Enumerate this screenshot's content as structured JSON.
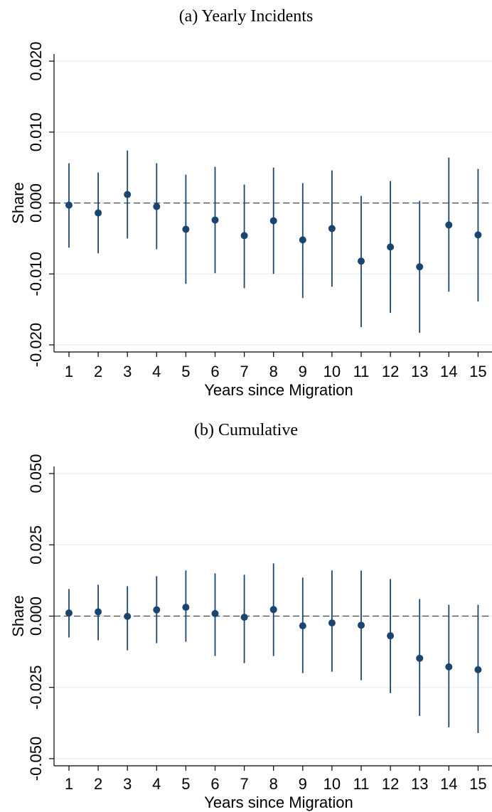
{
  "chart_data": [
    {
      "type": "scatter",
      "title": "(a) Yearly Incidents",
      "xlabel": "Years since Migration",
      "ylabel": "Share",
      "x": [
        1,
        2,
        3,
        4,
        5,
        6,
        7,
        8,
        9,
        10,
        11,
        12,
        13,
        14,
        15
      ],
      "x_tick_labels": [
        "1",
        "2",
        "3",
        "4",
        "5",
        "6",
        "7",
        "8",
        "9",
        "10",
        "11",
        "12",
        "13",
        "14",
        "15"
      ],
      "y_ticks": [
        -0.02,
        -0.01,
        0.0,
        0.01,
        0.02
      ],
      "y_tick_labels": [
        "-0.020",
        "-0.010",
        "0.000",
        "0.010",
        "0.020"
      ],
      "ylim": [
        -0.021,
        0.021
      ],
      "grid": true,
      "reference_line": 0,
      "series": [
        {
          "estimate": [
            -0.0003,
            -0.0014,
            0.0012,
            -0.0005,
            -0.0037,
            -0.0024,
            -0.0046,
            -0.0025,
            -0.0052,
            -0.0036,
            -0.0082,
            -0.0062,
            -0.009,
            -0.0031,
            -0.0045
          ],
          "ci_lower": [
            -0.0063,
            -0.0071,
            -0.005,
            -0.0065,
            -0.0114,
            -0.0099,
            -0.012,
            -0.01,
            -0.0134,
            -0.0118,
            -0.0175,
            -0.0155,
            -0.0183,
            -0.0125,
            -0.0139
          ],
          "ci_upper": [
            0.0056,
            0.0043,
            0.0074,
            0.0056,
            0.004,
            0.0051,
            0.0026,
            0.005,
            0.0028,
            0.0046,
            0.001,
            0.0031,
            0.0003,
            0.0064,
            0.0048
          ]
        }
      ]
    },
    {
      "type": "scatter",
      "title": "(b) Cumulative",
      "xlabel": "Years since Migration",
      "ylabel": "Share",
      "x": [
        1,
        2,
        3,
        4,
        5,
        6,
        7,
        8,
        9,
        10,
        11,
        12,
        13,
        14,
        15
      ],
      "x_tick_labels": [
        "1",
        "2",
        "3",
        "4",
        "5",
        "6",
        "7",
        "8",
        "9",
        "10",
        "11",
        "12",
        "13",
        "14",
        "15"
      ],
      "y_ticks": [
        -0.05,
        -0.025,
        0.0,
        0.025,
        0.05
      ],
      "y_tick_labels": [
        "-0.050",
        "-0.025",
        "0.000",
        "0.025",
        "0.050"
      ],
      "ylim": [
        -0.0525,
        0.0525
      ],
      "grid": true,
      "reference_line": 0,
      "series": [
        {
          "estimate": [
            0.0011,
            0.0015,
            -0.0001,
            0.0022,
            0.0031,
            0.0009,
            -0.0004,
            0.0023,
            -0.0034,
            -0.0024,
            -0.0032,
            -0.0069,
            -0.0148,
            -0.0178,
            -0.0188
          ],
          "ci_lower": [
            -0.0075,
            -0.0085,
            -0.012,
            -0.0095,
            -0.009,
            -0.014,
            -0.0165,
            -0.014,
            -0.02,
            -0.0195,
            -0.0225,
            -0.027,
            -0.035,
            -0.039,
            -0.041
          ],
          "ci_upper": [
            0.0095,
            0.011,
            0.0105,
            0.014,
            0.016,
            0.015,
            0.0145,
            0.0185,
            0.0135,
            0.016,
            0.016,
            0.013,
            0.006,
            0.004,
            0.004
          ]
        }
      ]
    }
  ]
}
